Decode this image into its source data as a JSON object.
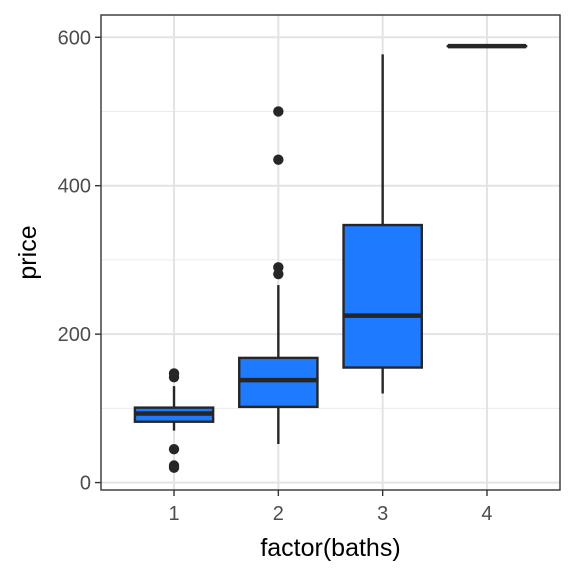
{
  "chart_data": {
    "type": "boxplot",
    "title": "",
    "xlabel": "factor(baths)",
    "ylabel": "price",
    "categories": [
      "1",
      "2",
      "3",
      "4"
    ],
    "ylim": [
      -10,
      630
    ],
    "y_ticks": [
      0,
      200,
      400,
      600
    ],
    "grid": true,
    "fill_color": "#1E7BFF",
    "stroke_color": "#262626",
    "boxes": [
      {
        "category": "1",
        "whisker_low": 70,
        "q1": 82,
        "median": 93,
        "q3": 101,
        "whisker_high": 130,
        "outliers": [
          147,
          142,
          45,
          23,
          20
        ]
      },
      {
        "category": "2",
        "whisker_low": 52,
        "q1": 102,
        "median": 138,
        "q3": 168,
        "whisker_high": 266,
        "outliers": [
          500,
          435,
          290,
          281
        ]
      },
      {
        "category": "3",
        "whisker_low": 120,
        "q1": 155,
        "median": 225,
        "q3": 347,
        "whisker_high": 577,
        "outliers": []
      },
      {
        "category": "4",
        "whisker_low": 588,
        "q1": 588,
        "median": 588,
        "q3": 588,
        "whisker_high": 588,
        "outliers": []
      }
    ]
  }
}
